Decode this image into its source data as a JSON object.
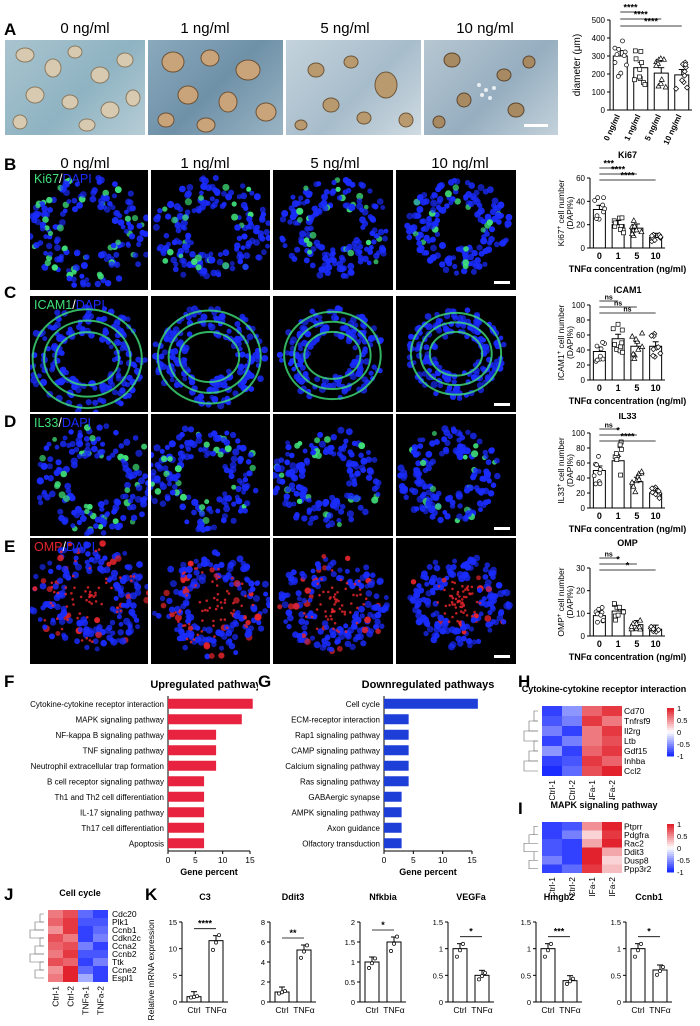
{
  "panel_labels": {
    "A": "A",
    "B": "B",
    "C": "C",
    "D": "D",
    "E": "E",
    "F": "F",
    "G": "G",
    "H": "H",
    "I": "I",
    "J": "J",
    "K": "K"
  },
  "concentrations": [
    "0 ng/ml",
    "1 ng/ml",
    "5 ng/ml",
    "10 ng/ml"
  ],
  "stains": {
    "ki67": {
      "marker": "Ki67",
      "sep": "/",
      "dapi": "DAPI"
    },
    "icam1": {
      "marker": "ICAM1",
      "sep": "/",
      "dapi": "DAPI"
    },
    "il33": {
      "marker": "IL33",
      "sep": "/",
      "dapi": "DAPI"
    },
    "omp": {
      "marker": "OMP",
      "sep": "/",
      "dapi": "DAPI"
    }
  },
  "colors": {
    "green": "#3fe07a",
    "blue": "#1a2cff",
    "red": "#e2242c",
    "bar_red": "#e8233f",
    "bar_blue": "#1d3fd8"
  },
  "chart_data": [
    {
      "type": "bar",
      "title": "",
      "categories": [
        "0 ng/ml",
        "1 ng/ml",
        "5 ng/ml",
        "10 ng/ml"
      ],
      "values": [
        300,
        235,
        205,
        195
      ],
      "ylabel": "diameter (μm)",
      "ylim": [
        0,
        500
      ],
      "yticks": [
        0,
        100,
        200,
        300,
        400,
        500
      ],
      "sig": [
        "****",
        "****",
        "****"
      ]
    },
    {
      "type": "bar",
      "title": "Ki67",
      "categories": [
        "0",
        "1",
        "5",
        "10"
      ],
      "values": [
        33,
        20,
        17,
        9
      ],
      "xlabel": "TNFα concentration (ng/ml)",
      "ylabel_main": "Ki67",
      "ylabel_sup": "+",
      "ylabel_rest": " cell number",
      "ylabel2": "(DAPI%)",
      "ylim": [
        0,
        60
      ],
      "yticks": [
        0,
        20,
        40,
        60
      ],
      "sig": [
        "***",
        "****",
        "****"
      ]
    },
    {
      "type": "bar",
      "title": "ICAM1",
      "categories": [
        "0",
        "1",
        "5",
        "10"
      ],
      "values": [
        38,
        55,
        45,
        45
      ],
      "xlabel": "TNFα concentration (ng/ml)",
      "ylabel_main": "ICAM1",
      "ylabel_sup": "+",
      "ylabel_rest": " cell number",
      "ylabel2": "(DAPI%)",
      "ylim": [
        0,
        100
      ],
      "yticks": [
        0,
        20,
        40,
        60,
        80,
        100
      ],
      "sig": [
        "ns",
        "ns",
        "ns"
      ]
    },
    {
      "type": "bar",
      "title": "IL33",
      "categories": [
        "0",
        "1",
        "5",
        "10"
      ],
      "values": [
        50,
        63,
        35,
        20
      ],
      "xlabel": "TNFα concentration (ng/ml)",
      "ylabel_main": "IL33",
      "ylabel_sup": "+",
      "ylabel_rest": " cell number",
      "ylabel2": "(DAPI%)",
      "ylim": [
        0,
        100
      ],
      "yticks": [
        0,
        20,
        40,
        60,
        80,
        100
      ],
      "sig": [
        "ns",
        "*",
        "****"
      ]
    },
    {
      "type": "bar",
      "title": "OMP",
      "categories": [
        "0",
        "1",
        "5",
        "10"
      ],
      "values": [
        9,
        11,
        5,
        3
      ],
      "xlabel": "TNFα concentration (ng/ml)",
      "ylabel_main": "OMP",
      "ylabel_sup": "+",
      "ylabel_rest": " cell number",
      "ylabel2": "(DAPI%)",
      "ylim": [
        0,
        30
      ],
      "yticks": [
        0,
        10,
        20,
        30
      ],
      "sig": [
        "ns",
        "*",
        "*"
      ]
    },
    {
      "type": "bar",
      "orientation": "horizontal",
      "title": "Upregulated pathways",
      "categories": [
        "Cytokine-cytokine receptor interaction",
        "MAPK signaling pathway",
        "NF-kappa B signaling pathway",
        "TNF signaling pathway",
        "Neutrophil extracellular trap formation",
        "B cell receptor signaling pathway",
        "Th1 and Th2 cell differentiation",
        "IL-17 signaling pathway",
        "Th17 cell differentiation",
        "Apoptosis"
      ],
      "values": [
        15.5,
        13.5,
        8.8,
        8.8,
        8.8,
        6.6,
        6.6,
        6.6,
        6.6,
        6.6
      ],
      "xlabel": "Gene percent",
      "xlim": [
        0,
        15
      ],
      "xticks": [
        0,
        5,
        10,
        15
      ]
    },
    {
      "type": "bar",
      "orientation": "horizontal",
      "title": "Downregulated pathways",
      "categories": [
        "Cell cycle",
        "ECM-receptor interaction",
        "Rap1 signaling pathway",
        "CAMP signaling pathway",
        "Calcium signaling pathway",
        "Ras signaling pathway",
        "GABAergic synapse",
        "AMPK signaling pathway",
        "Axon guidance",
        "Olfactory transduction"
      ],
      "values": [
        16,
        4.2,
        4.2,
        4.2,
        4.2,
        4.2,
        3.0,
        3.0,
        3.0,
        3.0
      ],
      "xlabel": "Gene percent",
      "xlim": [
        0,
        15
      ],
      "xticks": [
        0,
        5,
        10,
        15
      ]
    },
    {
      "type": "heatmap",
      "title": "Cytokine-cytokine receptor interaction",
      "columns": [
        "Ctrl-1",
        "Ctrl-2",
        "TNFa-1",
        "TNFa-2"
      ],
      "rows": [
        "Cd70",
        "Tnfrsf9",
        "Il2rg",
        "Ltb",
        "Gdf15",
        "Inhba",
        "Ccl2"
      ],
      "values": [
        [
          -0.9,
          -0.5,
          0.7,
          0.9
        ],
        [
          -0.8,
          -0.6,
          0.9,
          0.6
        ],
        [
          -0.6,
          -0.9,
          0.6,
          0.9
        ],
        [
          -0.9,
          -0.6,
          0.6,
          0.8
        ],
        [
          -0.5,
          -0.9,
          0.7,
          0.9
        ],
        [
          -0.9,
          -0.8,
          0.9,
          0.7
        ],
        [
          -1,
          -0.7,
          0.8,
          1
        ]
      ],
      "scale": [
        "1",
        "0.5",
        "0",
        "-0.5",
        "-1"
      ]
    },
    {
      "type": "heatmap",
      "title": "MAPK signaling pathway",
      "columns": [
        "Ctrl-1",
        "Ctrl-2",
        "TNFa-1",
        "TNFa-2"
      ],
      "rows": [
        "Ptprr",
        "Pdgfra",
        "Rac2",
        "Ddit3",
        "Dusp8",
        "Ppp3r2"
      ],
      "values": [
        [
          -0.9,
          -0.8,
          0.5,
          1
        ],
        [
          -0.9,
          -0.6,
          0.2,
          0.9
        ],
        [
          -0.8,
          -0.9,
          0.4,
          1
        ],
        [
          -0.8,
          -0.9,
          1,
          0.4
        ],
        [
          -0.6,
          -0.9,
          1,
          0.2
        ],
        [
          -0.9,
          -0.7,
          0.9,
          0.3
        ]
      ],
      "scale": [
        "1",
        "0.5",
        "0",
        "-0.5",
        "-1"
      ]
    },
    {
      "type": "heatmap",
      "title": "Cell cycle",
      "columns": [
        "Ctrl-1",
        "Ctrl-2",
        "TNFa-1",
        "TNFa-2"
      ],
      "rows": [
        "Cdc20",
        "Plk1",
        "Ccnb1",
        "Cdkn2c",
        "Ccna2",
        "Ccnb2",
        "Ttk",
        "Ccne2",
        "Espl1"
      ],
      "values": [
        [
          0.6,
          0.8,
          -0.7,
          -0.9
        ],
        [
          0.7,
          0.9,
          -0.8,
          -0.8
        ],
        [
          0.5,
          0.9,
          -0.9,
          -0.7
        ],
        [
          0.8,
          0.6,
          -0.9,
          -0.6
        ],
        [
          0.7,
          0.8,
          -0.6,
          -0.9
        ],
        [
          0.6,
          0.9,
          -0.8,
          -0.8
        ],
        [
          0.8,
          0.7,
          -0.9,
          -0.6
        ],
        [
          0.5,
          1,
          -0.7,
          -0.9
        ],
        [
          0.6,
          1,
          -0.4,
          -0.9
        ]
      ],
      "scale": [
        "1",
        "0.5",
        "0",
        "-0.5",
        "-1"
      ]
    },
    {
      "type": "bar",
      "title": "C3",
      "categories": [
        "Ctrl",
        "TNFα"
      ],
      "values": [
        1,
        11.5
      ],
      "ylim": [
        0,
        15
      ],
      "yticks": [
        0,
        5,
        10,
        15
      ],
      "sig": "****"
    },
    {
      "type": "bar",
      "title": "Ddit3",
      "categories": [
        "Ctrl",
        "TNFα"
      ],
      "values": [
        1,
        5.2
      ],
      "ylim": [
        0,
        8
      ],
      "yticks": [
        0,
        2,
        4,
        6,
        8
      ],
      "sig": "**"
    },
    {
      "type": "bar",
      "title": "Nfkbia",
      "categories": [
        "Ctrl",
        "TNFα"
      ],
      "values": [
        1,
        1.5
      ],
      "ylim": [
        0,
        2
      ],
      "yticks": [
        0,
        0.5,
        1,
        1.5,
        2
      ],
      "sig": "*"
    },
    {
      "type": "bar",
      "title": "VEGFa",
      "categories": [
        "Ctrl",
        "TNFα"
      ],
      "values": [
        1,
        0.5
      ],
      "ylim": [
        0,
        1.5
      ],
      "yticks": [
        0,
        0.5,
        1,
        1.5
      ],
      "sig": "*"
    },
    {
      "type": "bar",
      "title": "Hmgb2",
      "categories": [
        "Ctrl",
        "TNFα"
      ],
      "values": [
        1,
        0.4
      ],
      "ylim": [
        0,
        1.5
      ],
      "yticks": [
        0,
        0.5,
        1,
        1.5
      ],
      "sig": "***"
    },
    {
      "type": "bar",
      "title": "Ccnb1",
      "categories": [
        "Ctrl",
        "TNFα"
      ],
      "values": [
        1,
        0.6
      ],
      "ylim": [
        0,
        1.5
      ],
      "yticks": [
        0,
        0.5,
        1,
        1.5
      ],
      "sig": "*"
    }
  ],
  "k_ylabel": "Relative mRNA expression"
}
